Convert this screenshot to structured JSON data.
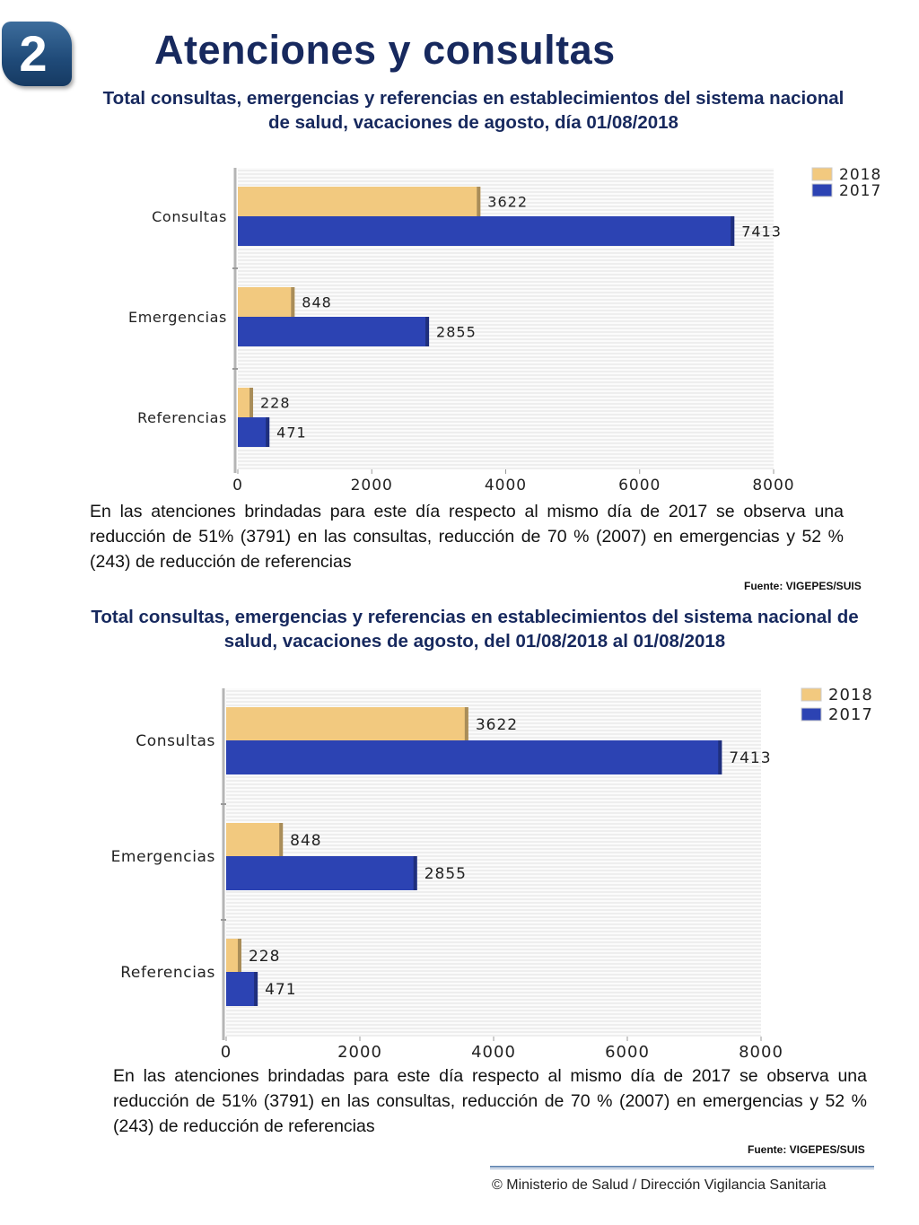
{
  "badge_number": "2",
  "page_title": "Atenciones y consultas",
  "chart_data": [
    {
      "type": "bar",
      "orientation": "horizontal",
      "title": "Total consultas, emergencias y referencias en establecimientos del sistema nacional de salud, vacaciones de agosto, día 01/08/2018",
      "categories": [
        "Consultas",
        "Emergencias",
        "Referencias"
      ],
      "series": [
        {
          "name": "2018",
          "values": [
            3622,
            848,
            228
          ],
          "color": "#f2c97f"
        },
        {
          "name": "2017",
          "values": [
            7413,
            2855,
            471
          ],
          "color": "#2c43b3"
        }
      ],
      "xlim": [
        0,
        8000
      ],
      "x_ticks": [
        "0",
        "2000",
        "4000",
        "6000",
        "8000"
      ],
      "grid": true,
      "legend": "top-right"
    },
    {
      "type": "bar",
      "orientation": "horizontal",
      "title": "Total consultas, emergencias y referencias en establecimientos del sistema nacional de salud, vacaciones de agosto, del 01/08/2018 al 01/08/2018",
      "categories": [
        "Consultas",
        "Emergencias",
        "Referencias"
      ],
      "series": [
        {
          "name": "2018",
          "values": [
            3622,
            848,
            228
          ],
          "color": "#f2c97f"
        },
        {
          "name": "2017",
          "values": [
            7413,
            2855,
            471
          ],
          "color": "#2c43b3"
        }
      ],
      "xlim": [
        0,
        8000
      ],
      "x_ticks": [
        "0",
        "2000",
        "4000",
        "6000",
        "8000"
      ],
      "grid": true,
      "legend": "top-right"
    }
  ],
  "descriptions": [
    "En las atenciones brindadas para este día respecto al mismo día de 2017 se observa una reducción de 51% (3791) en las consultas, reducción de 70 % (2007) en emergencias y 52 % (243) de reducción de referencias",
    "En las atenciones brindadas para este día respecto al mismo día de 2017 se observa una reducción de 51% (3791) en las consultas, reducción de 70 % (2007) en emergencias y 52 % (243) de reducción de referencias"
  ],
  "sources": [
    "Fuente: VIGEPES/SUIS",
    "Fuente: VIGEPES/SUIS"
  ],
  "footer": "© Ministerio de Salud / Dirección Vigilancia Sanitaria"
}
